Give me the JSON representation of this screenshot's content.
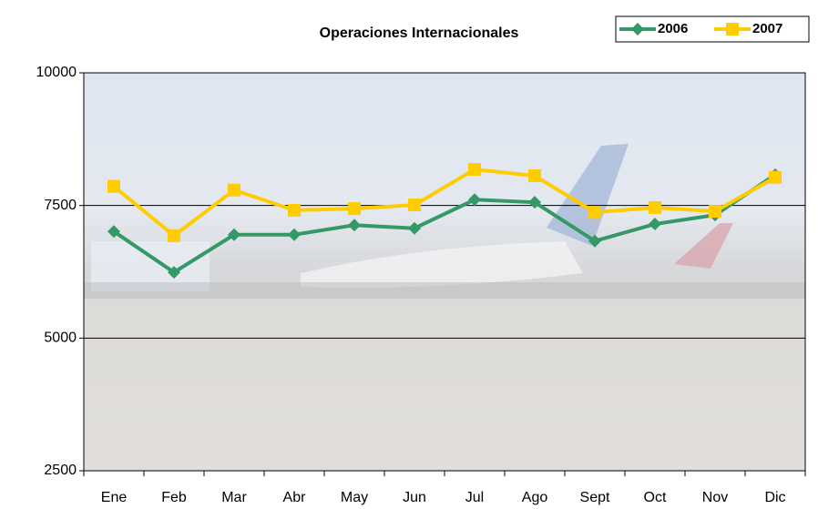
{
  "chart_data": {
    "type": "line",
    "title": "Operaciones Internacionales",
    "categories": [
      "Ene",
      "Feb",
      "Mar",
      "Abr",
      "May",
      "Jun",
      "Jul",
      "Ago",
      "Sept",
      "Oct",
      "Nov",
      "Dic"
    ],
    "series": [
      {
        "name": "2006",
        "color": "#339966",
        "marker": "diamond",
        "values": [
          7010,
          6240,
          6950,
          6950,
          7130,
          7070,
          7610,
          7560,
          6830,
          7150,
          7320,
          8080
        ]
      },
      {
        "name": "2007",
        "color": "#ffcc00",
        "marker": "square",
        "values": [
          7860,
          6930,
          7790,
          7410,
          7440,
          7510,
          8180,
          8060,
          7370,
          7460,
          7390,
          8030
        ]
      }
    ],
    "ylim": [
      2500,
      10000
    ],
    "yticks": [
      2500,
      5000,
      7500,
      10000
    ],
    "grid": true,
    "legend": "top-right"
  }
}
